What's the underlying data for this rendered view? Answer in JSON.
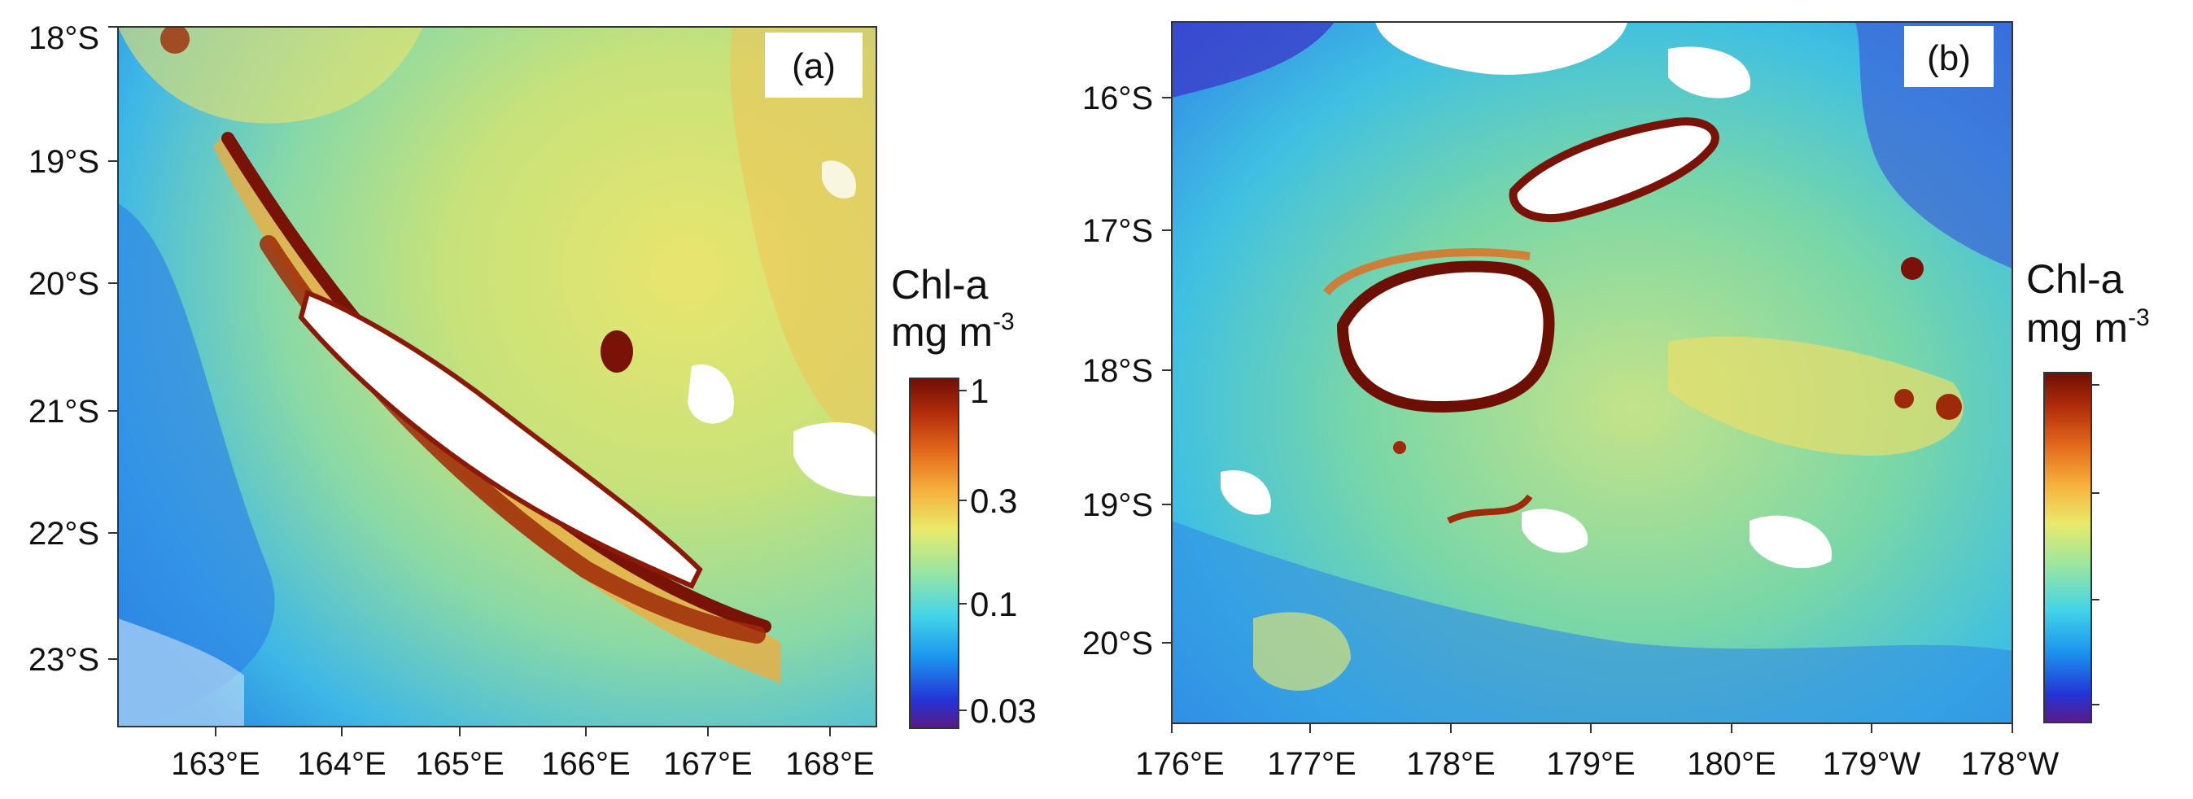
{
  "colors": {
    "cb_stops": [
      "#5b1a86",
      "#2433d6",
      "#1b93ee",
      "#43d4e8",
      "#9be6a0",
      "#e9ea6a",
      "#f6b03c",
      "#e46a1c",
      "#b32d0b",
      "#6e0f05"
    ],
    "land": "#ffffff",
    "frame": "#333333"
  },
  "panel_a": {
    "label": "(a)",
    "lat_ticks": [
      "18°S",
      "19°S",
      "20°S",
      "21°S",
      "22°S",
      "23°S"
    ],
    "lon_ticks": [
      "163°E",
      "164°E",
      "165°E",
      "166°E",
      "167°E",
      "168°E"
    ],
    "colorbar": {
      "title_line1": "Chl-a",
      "title_line2": "mg m",
      "title_sup": "-3",
      "ticks": [
        "1",
        "0.3",
        "0.1",
        "0.03"
      ]
    }
  },
  "panel_b": {
    "label": "(b)",
    "lat_ticks": [
      "16°S",
      "17°S",
      "18°S",
      "19°S",
      "20°S"
    ],
    "lon_ticks": [
      "176°E",
      "177°E",
      "178°E",
      "179°E",
      "180°E",
      "179°W",
      "178°W"
    ],
    "colorbar": {
      "title_line1": "Chl-a",
      "title_line2": "mg m",
      "title_sup": "-3"
    }
  }
}
